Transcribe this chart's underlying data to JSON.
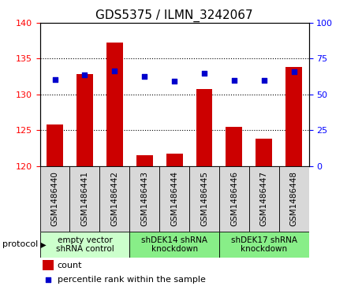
{
  "title": "GDS5375 / ILMN_3242067",
  "samples": [
    "GSM1486440",
    "GSM1486441",
    "GSM1486442",
    "GSM1486443",
    "GSM1486444",
    "GSM1486445",
    "GSM1486446",
    "GSM1486447",
    "GSM1486448"
  ],
  "counts": [
    125.8,
    132.8,
    137.2,
    121.5,
    121.7,
    130.8,
    125.5,
    123.8,
    133.8
  ],
  "percentiles": [
    60.5,
    63.5,
    66.5,
    62.5,
    59.5,
    64.5,
    60.0,
    60.0,
    66.0
  ],
  "ylim_left": [
    120,
    140
  ],
  "ylim_right": [
    0,
    100
  ],
  "yticks_left": [
    120,
    125,
    130,
    135,
    140
  ],
  "yticks_right": [
    0,
    25,
    50,
    75,
    100
  ],
  "bar_color": "#cc0000",
  "dot_color": "#0000cc",
  "protocol_groups": [
    {
      "label": "empty vector\nshRNA control",
      "start": 0,
      "end": 3,
      "color": "#ccffcc"
    },
    {
      "label": "shDEK14 shRNA\nknockdown",
      "start": 3,
      "end": 6,
      "color": "#88ee88"
    },
    {
      "label": "shDEK17 shRNA\nknockdown",
      "start": 6,
      "end": 9,
      "color": "#88ee88"
    }
  ],
  "legend_count_label": "count",
  "legend_pct_label": "percentile rank within the sample",
  "protocol_label": "protocol",
  "title_fontsize": 11,
  "axis_fontsize": 8,
  "tick_label_fontsize": 8,
  "sample_label_fontsize": 7.5,
  "protocol_fontsize": 7.5,
  "legend_fontsize": 8
}
